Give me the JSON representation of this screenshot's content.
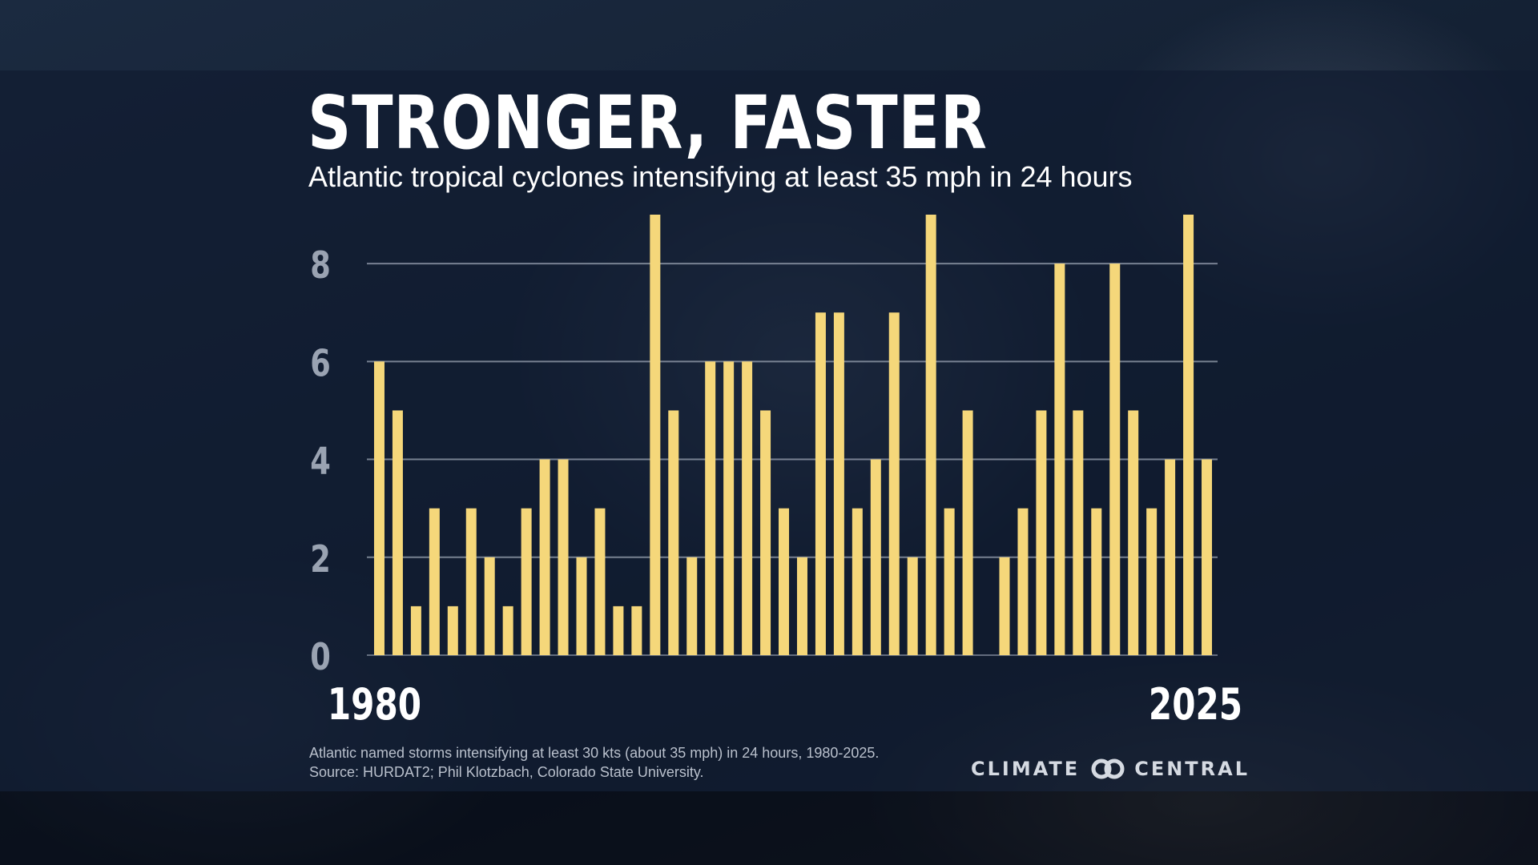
{
  "title": "STRONGER, FASTER",
  "subtitle": "Atlantic tropical cyclones intensifying at least 35 mph in 24 hours",
  "footnote": {
    "line1": "Atlantic named storms intensifying at least 30 kts (about 35 mph) in 24 hours, 1980-2025.",
    "line2": "Source: HURDAT2; Phil Klotzbach, Colorado State University."
  },
  "logo": {
    "left_text": "CLIMATE",
    "right_text": "CENTRAL",
    "icon": "interlocking-rings-icon"
  },
  "colors": {
    "bar": "#f5d77a",
    "grid": "#9aa3b2",
    "tick": "#9aa3b2",
    "label": "#ffffff"
  },
  "chart_data": {
    "type": "bar",
    "title": "STRONGER, FASTER",
    "subtitle": "Atlantic tropical cyclones intensifying at least 35 mph in 24 hours",
    "x_start": 1980,
    "x_end": 2025,
    "x_tick_labels": [
      "1980",
      "2025"
    ],
    "categories": [
      1980,
      1981,
      1982,
      1983,
      1984,
      1985,
      1986,
      1987,
      1988,
      1989,
      1990,
      1991,
      1992,
      1993,
      1994,
      1995,
      1996,
      1997,
      1998,
      1999,
      2000,
      2001,
      2002,
      2003,
      2004,
      2005,
      2006,
      2007,
      2008,
      2009,
      2010,
      2011,
      2012,
      2013,
      2014,
      2015,
      2016,
      2017,
      2018,
      2019,
      2020,
      2021,
      2022,
      2023,
      2024,
      2025
    ],
    "values": [
      6,
      5,
      1,
      3,
      1,
      3,
      2,
      1,
      3,
      4,
      4,
      2,
      3,
      1,
      1,
      9,
      5,
      2,
      6,
      6,
      6,
      5,
      3,
      2,
      7,
      7,
      3,
      4,
      7,
      2,
      9,
      3,
      5,
      0,
      2,
      3,
      5,
      8,
      5,
      3,
      8,
      5,
      3,
      4,
      9,
      4
    ],
    "y_ticks": [
      0,
      2,
      4,
      6,
      8
    ],
    "ylim": [
      0,
      9
    ],
    "grid": true,
    "legend": "none"
  }
}
